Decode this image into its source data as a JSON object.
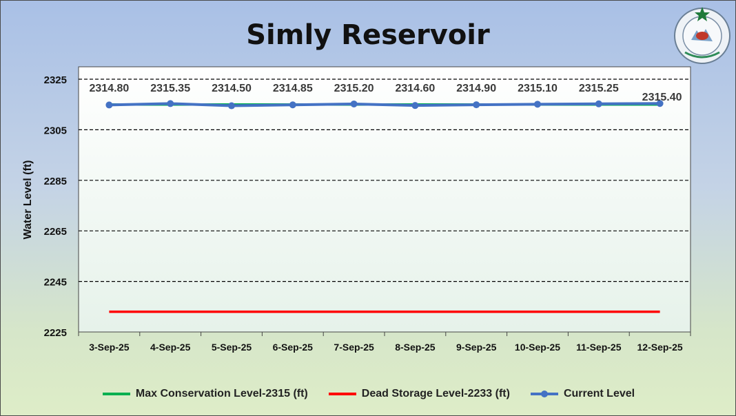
{
  "chart_data": {
    "type": "line",
    "title": "Simly Reservoir",
    "xlabel": "",
    "ylabel": "Water Level (ft)",
    "ylim": [
      2225,
      2325
    ],
    "yticks": [
      2225,
      2245,
      2265,
      2285,
      2305,
      2325
    ],
    "categories": [
      "3-Sep-25",
      "4-Sep-25",
      "5-Sep-25",
      "6-Sep-25",
      "7-Sep-25",
      "8-Sep-25",
      "9-Sep-25",
      "10-Sep-25",
      "11-Sep-25",
      "12-Sep-25"
    ],
    "grid": "horizontal dashed",
    "legend_position": "bottom",
    "series": [
      {
        "name": "Max Conservation Level-2315 (ft)",
        "color": "#00b050",
        "values": [
          2315,
          2315,
          2315,
          2315,
          2315,
          2315,
          2315,
          2315,
          2315,
          2315
        ]
      },
      {
        "name": "Dead Storage Level-2233 (ft)",
        "color": "#ff0000",
        "values": [
          2233,
          2233,
          2233,
          2233,
          2233,
          2233,
          2233,
          2233,
          2233,
          2233
        ]
      },
      {
        "name": "Current Level",
        "color": "#4472c4",
        "markers": true,
        "values": [
          2314.8,
          2315.35,
          2314.5,
          2314.85,
          2315.2,
          2314.6,
          2314.9,
          2315.1,
          2315.25,
          2315.4
        ],
        "labels": [
          "2314.80",
          "2315.35",
          "2314.50",
          "2314.85",
          "2315.20",
          "2314.60",
          "2314.90",
          "2315.10",
          "2315.25",
          "2315.40"
        ]
      }
    ]
  }
}
